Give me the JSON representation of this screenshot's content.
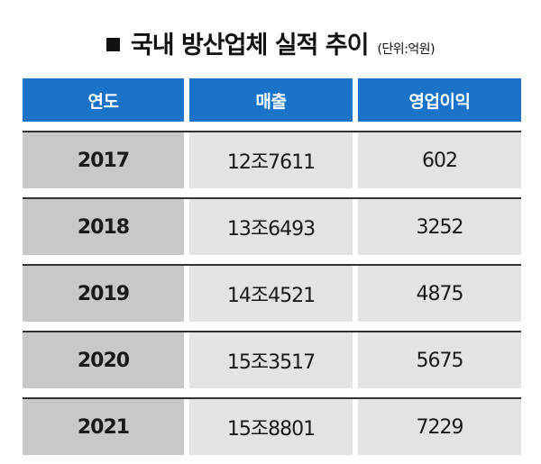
{
  "title": {
    "text": "국내 방산업체 실적 추이",
    "unit": "(단위:억원)"
  },
  "table": {
    "headers": [
      "연도",
      "매출",
      "영업이익"
    ],
    "rows": [
      {
        "year": "2017",
        "sales": "12조7611",
        "operating_profit": "602"
      },
      {
        "year": "2018",
        "sales": "13조6493",
        "operating_profit": "3252"
      },
      {
        "year": "2019",
        "sales": "14조4521",
        "operating_profit": "4875"
      },
      {
        "year": "2020",
        "sales": "15조3517",
        "operating_profit": "5675"
      },
      {
        "year": "2021",
        "sales": "15조8801",
        "operating_profit": "7229"
      }
    ]
  },
  "colors": {
    "header_bg": "#1a73c9",
    "year_cell_bg": "#c8c8c8",
    "value_cell_bg": "#e3e3e3",
    "row_rule": "#333333"
  }
}
